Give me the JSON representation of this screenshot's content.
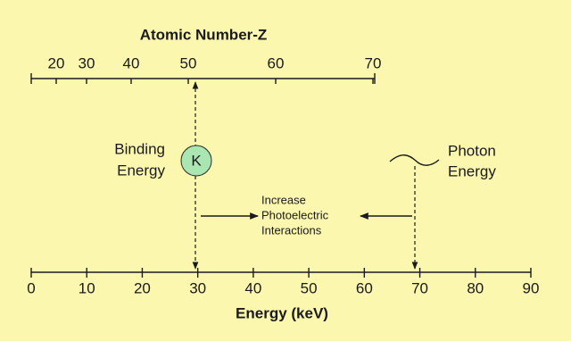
{
  "top_axis": {
    "title": "Atomic Number-Z",
    "ticks": [
      20,
      30,
      40,
      50,
      60,
      70
    ]
  },
  "bottom_axis": {
    "title": "Energy (keV)",
    "ticks": [
      0,
      10,
      20,
      30,
      40,
      50,
      60,
      70,
      80,
      90
    ]
  },
  "shell": "K",
  "binding_energy": [
    "Binding",
    "Energy"
  ],
  "photon_energy": [
    "Photon",
    "Energy"
  ],
  "note": [
    "Increase",
    "Photoelectric",
    "Interactions"
  ]
}
